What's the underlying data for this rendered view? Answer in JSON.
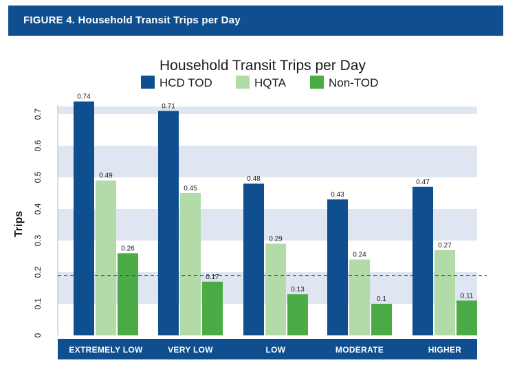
{
  "header": {
    "title": "FIGURE 4. Household Transit Trips per Day"
  },
  "chart_data": {
    "type": "bar",
    "title": "Household Transit Trips per Day",
    "ylabel": "Trips",
    "xlabel": "",
    "ylim": [
      0,
      0.75
    ],
    "yticks": [
      "0",
      "0.1",
      "0.2",
      "0.3",
      "0.4",
      "0.5",
      "0.6",
      "0.7"
    ],
    "categories": [
      "EXTREMELY LOW",
      "VERY LOW",
      "LOW",
      "MODERATE",
      "HIGHER"
    ],
    "series": [
      {
        "name": "HCD TOD",
        "color": "#0f4f8f",
        "values": [
          0.74,
          0.71,
          0.48,
          0.43,
          0.47
        ],
        "labels": [
          "0.74",
          "0.71",
          "0.48",
          "0.43",
          "0.47"
        ]
      },
      {
        "name": "HQTA",
        "color": "#b3dba8",
        "values": [
          0.49,
          0.45,
          0.29,
          0.24,
          0.27
        ],
        "labels": [
          "0.49",
          "0.45",
          "0.29",
          "0.24",
          "0.27"
        ]
      },
      {
        "name": "Non-TOD",
        "color": "#4aab47",
        "values": [
          0.26,
          0.17,
          0.13,
          0.1,
          0.11
        ],
        "labels": [
          "0.26",
          "0.17",
          "0.13",
          "0.1",
          "0.11"
        ]
      }
    ],
    "reference_line": {
      "value": 0.19,
      "style": "dashed",
      "color": "#0f4f8f"
    },
    "grid": "alternating horizontal bands",
    "band_color": "#dfe5f1",
    "category_bar_color": "#0f4f8f",
    "legend": "top"
  }
}
